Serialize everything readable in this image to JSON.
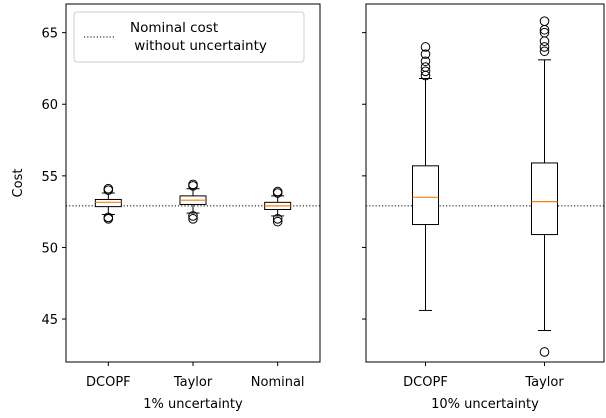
{
  "chart_data": {
    "type": "box",
    "ylabel": "Cost",
    "ylim": [
      42,
      67
    ],
    "yticks": [
      45,
      50,
      55,
      60,
      65
    ],
    "reference_line": {
      "value": 52.9,
      "label": "Nominal cost\n without uncertainty",
      "style": "dotted"
    },
    "legend_position": "top-left of left panel",
    "panels": [
      {
        "xlabel": "1% uncertainty",
        "categories": [
          "DCOPF",
          "Taylor",
          "Nominal"
        ],
        "boxes": [
          {
            "whislo": 52.3,
            "q1": 52.85,
            "med": 53.15,
            "q3": 53.35,
            "whishi": 53.8,
            "fliers": [
              54.1,
              54.0,
              52.1,
              52.0
            ]
          },
          {
            "whislo": 52.4,
            "q1": 53.0,
            "med": 53.3,
            "q3": 53.6,
            "whishi": 54.1,
            "fliers": [
              54.4,
              54.3,
              52.2,
              52.0
            ]
          },
          {
            "whislo": 52.2,
            "q1": 52.65,
            "med": 52.9,
            "q3": 53.15,
            "whishi": 53.6,
            "fliers": [
              53.9,
              53.8,
              52.0,
              51.8
            ]
          }
        ]
      },
      {
        "xlabel": "10% uncertainty",
        "categories": [
          "DCOPF",
          "Taylor"
        ],
        "boxes": [
          {
            "whislo": 45.6,
            "q1": 51.6,
            "med": 53.5,
            "q3": 55.7,
            "whishi": 61.8,
            "fliers": [
              62.0,
              62.3,
              62.6,
              63.0,
              63.5,
              64.0
            ]
          },
          {
            "whislo": 44.2,
            "q1": 50.9,
            "med": 53.2,
            "q3": 55.9,
            "whishi": 63.1,
            "fliers": [
              63.7,
              64.0,
              64.4,
              65.0,
              65.2,
              65.8,
              42.7
            ]
          }
        ]
      }
    ],
    "colors": {
      "median": "#ff7f0e",
      "reference": "#000000",
      "box": "#000000"
    }
  }
}
